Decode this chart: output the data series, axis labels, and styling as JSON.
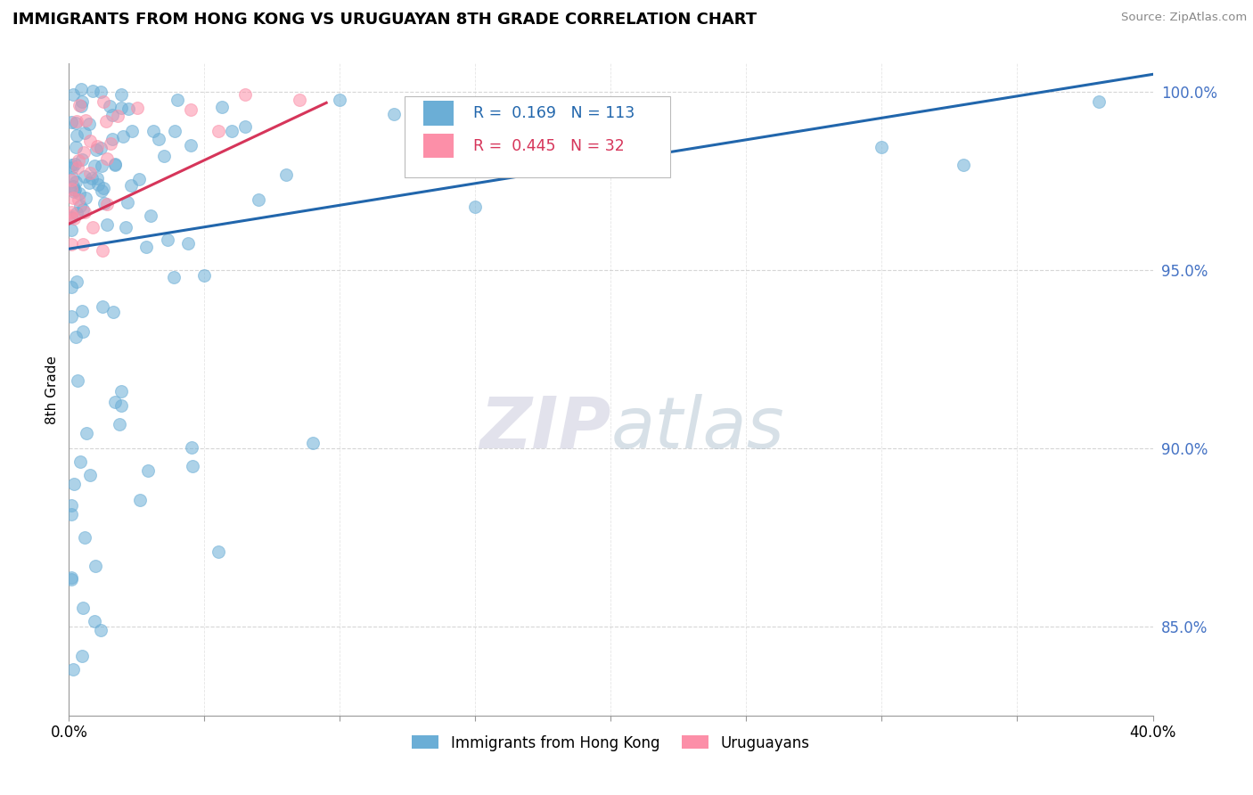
{
  "title": "IMMIGRANTS FROM HONG KONG VS URUGUAYAN 8TH GRADE CORRELATION CHART",
  "source_text": "Source: ZipAtlas.com",
  "ylabel": "8th Grade",
  "xlim": [
    0.0,
    0.4
  ],
  "ylim": [
    0.825,
    1.008
  ],
  "xticks": [
    0.0,
    0.05,
    0.1,
    0.15,
    0.2,
    0.25,
    0.3,
    0.35,
    0.4
  ],
  "xticklabels": [
    "0.0%",
    "",
    "",
    "",
    "",
    "",
    "",
    "",
    "40.0%"
  ],
  "yticks": [
    0.85,
    0.9,
    0.95,
    1.0
  ],
  "yticklabels": [
    "85.0%",
    "90.0%",
    "95.0%",
    "100.0%"
  ],
  "blue_R": "0.169",
  "blue_N": "113",
  "pink_R": "0.445",
  "pink_N": "32",
  "blue_color": "#6BAED6",
  "pink_color": "#FC8FA8",
  "blue_line_color": "#2166AC",
  "pink_line_color": "#D6355A",
  "ytick_color": "#4472C4",
  "legend_label_blue": "Immigrants from Hong Kong",
  "legend_label_pink": "Uruguayans",
  "blue_trend_x": [
    0.0,
    0.4
  ],
  "blue_trend_y": [
    0.956,
    1.005
  ],
  "pink_trend_x": [
    0.0,
    0.095
  ],
  "pink_trend_y": [
    0.963,
    0.997
  ],
  "seed_blue": 42,
  "seed_pink": 77
}
